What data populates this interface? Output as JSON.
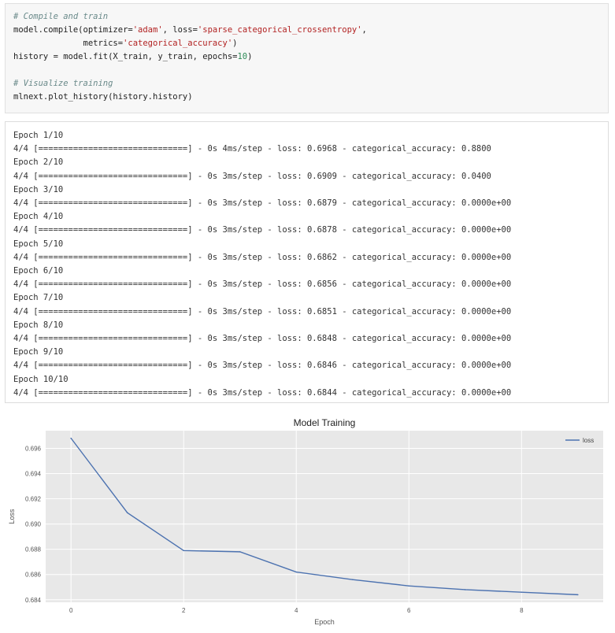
{
  "code": {
    "comment1": "# Compile and train",
    "compile_prefix": "model.compile(optimizer=",
    "compile_opt": "'adam'",
    "compile_mid": ", loss=",
    "compile_loss": "'sparse_categorical_crossentropy'",
    "compile_end": ",",
    "metrics_prefix": "              metrics=",
    "metrics_val": "'categorical_accuracy'",
    "metrics_end": ")",
    "fit_prefix": "history = model.fit(X_train, y_train, epochs=",
    "fit_epochs": "10",
    "fit_end": ")",
    "comment2": "# Visualize training",
    "plot_call": "mlnext.plot_history(history.history)"
  },
  "output": {
    "lines": [
      "Epoch 1/10",
      "4/4 [==============================] - 0s 4ms/step - loss: 0.6968 - categorical_accuracy: 0.8800",
      "Epoch 2/10",
      "4/4 [==============================] - 0s 3ms/step - loss: 0.6909 - categorical_accuracy: 0.0400",
      "Epoch 3/10",
      "4/4 [==============================] - 0s 3ms/step - loss: 0.6879 - categorical_accuracy: 0.0000e+00",
      "Epoch 4/10",
      "4/4 [==============================] - 0s 3ms/step - loss: 0.6878 - categorical_accuracy: 0.0000e+00",
      "Epoch 5/10",
      "4/4 [==============================] - 0s 3ms/step - loss: 0.6862 - categorical_accuracy: 0.0000e+00",
      "Epoch 6/10",
      "4/4 [==============================] - 0s 3ms/step - loss: 0.6856 - categorical_accuracy: 0.0000e+00",
      "Epoch 7/10",
      "4/4 [==============================] - 0s 3ms/step - loss: 0.6851 - categorical_accuracy: 0.0000e+00",
      "Epoch 8/10",
      "4/4 [==============================] - 0s 3ms/step - loss: 0.6848 - categorical_accuracy: 0.0000e+00",
      "Epoch 9/10",
      "4/4 [==============================] - 0s 3ms/step - loss: 0.6846 - categorical_accuracy: 0.0000e+00",
      "Epoch 10/10",
      "4/4 [==============================] - 0s 3ms/step - loss: 0.6844 - categorical_accuracy: 0.0000e+00"
    ]
  },
  "chart_data": {
    "type": "line",
    "title": "Model Training",
    "xlabel": "Epoch",
    "ylabel": "Loss",
    "x": [
      0,
      1,
      2,
      3,
      4,
      5,
      6,
      7,
      8,
      9
    ],
    "series": [
      {
        "name": "loss",
        "values": [
          0.6968,
          0.6909,
          0.6879,
          0.6878,
          0.6862,
          0.6856,
          0.6851,
          0.6848,
          0.6846,
          0.6844
        ],
        "color": "#4c72b0"
      }
    ],
    "xticks": [
      0,
      2,
      4,
      6,
      8
    ],
    "xtick_labels": [
      "0",
      "2",
      "4",
      "6",
      "8"
    ],
    "yticks": [
      0.684,
      0.686,
      0.688,
      0.69,
      0.692,
      0.694,
      0.696
    ],
    "ytick_labels": [
      "0.684",
      "0.686",
      "0.688",
      "0.690",
      "0.692",
      "0.694",
      "0.696"
    ],
    "xlim": [
      -0.45,
      9.45
    ],
    "ylim": [
      0.6838,
      0.6974
    ],
    "grid": true,
    "legend": "top-right",
    "background": "#e8e8e8"
  }
}
